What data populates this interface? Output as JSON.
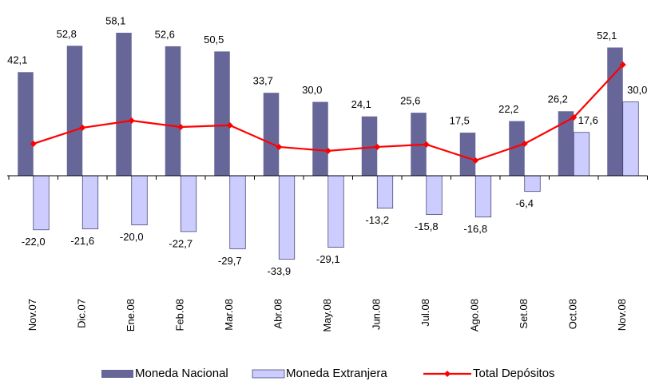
{
  "chart_data": {
    "type": "bar",
    "categories": [
      "Nov.07",
      "Dic.07",
      "Ene.08",
      "Feb.08",
      "Mar.08",
      "Abr.08",
      "May.08",
      "Jun.08",
      "Jul.08",
      "Ago.08",
      "Set.08",
      "Oct.08",
      "Nov.08"
    ],
    "series": [
      {
        "name": "Moneda Nacional",
        "color": "#666699",
        "type": "bar",
        "values": [
          42.1,
          52.8,
          58.1,
          52.6,
          50.5,
          33.7,
          30.0,
          24.1,
          25.6,
          17.5,
          22.2,
          26.2,
          52.1
        ],
        "value_labels": [
          "42,1",
          "52,8",
          "58,1",
          "52,6",
          "50,5",
          "33,7",
          "30,0",
          "24,1",
          "25,6",
          "17,5",
          "22,2",
          "26,2",
          "52,1"
        ]
      },
      {
        "name": "Moneda Extranjera",
        "color": "#ccccff",
        "type": "bar",
        "values": [
          -22.0,
          -21.6,
          -20.0,
          -22.7,
          -29.7,
          -33.9,
          -29.1,
          -13.2,
          -15.8,
          -16.8,
          -6.4,
          17.6,
          30.0
        ],
        "value_labels": [
          "-22,0",
          "-21,6",
          "-20,0",
          "-22,7",
          "-29,7",
          "-33,9",
          "-29,1",
          "-13,2",
          "-15,8",
          "-16,8",
          "-6,4",
          "17,6",
          "30,0"
        ]
      },
      {
        "name": "Total Depósitos",
        "color": "#ff0000",
        "type": "line",
        "values": [
          13.0,
          19.5,
          22.4,
          19.8,
          20.5,
          11.7,
          10.1,
          11.7,
          12.7,
          6.2,
          13.0,
          23.7,
          45.1
        ]
      }
    ],
    "legend": "bottom"
  }
}
